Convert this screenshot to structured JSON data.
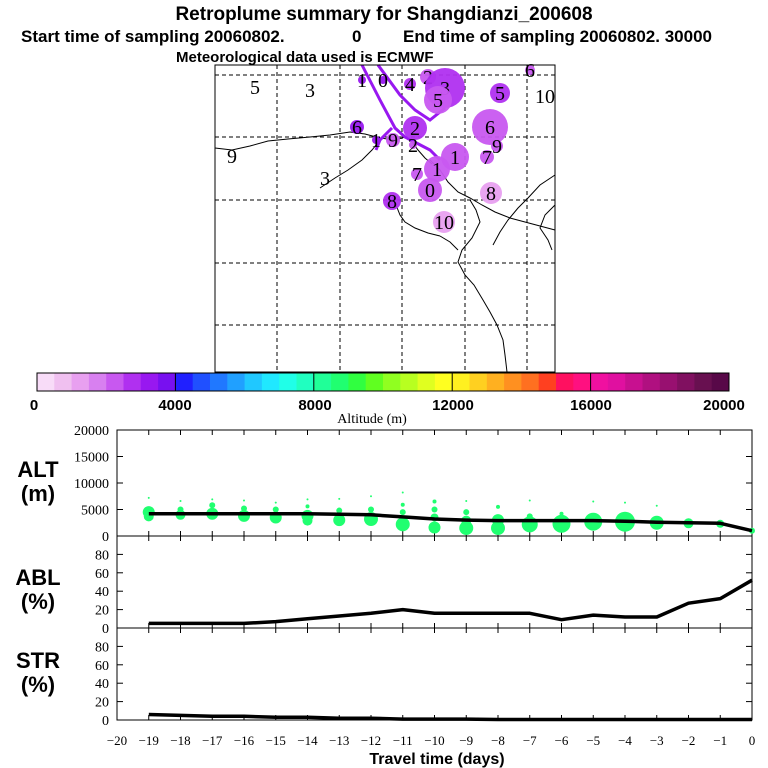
{
  "header": {
    "title": "Retroplume summary for Shangdianzi_200608",
    "start_label": "Start time of sampling 20060802.",
    "start_value": "0",
    "end_label": "End time of sampling 20060802. 30000",
    "met_label": "Meteorological data used is ECMWF"
  },
  "colorbar": {
    "min": 0,
    "max": 20000,
    "tick_labels": [
      "0",
      "4000",
      "8000",
      "12000",
      "16000",
      "20000"
    ],
    "ticks": [
      0,
      4000,
      8000,
      12000,
      16000,
      20000
    ],
    "xlabel": "Altitude (m)",
    "colors": [
      "#f8dcf8",
      "#f0c0f0",
      "#e8a0f0",
      "#d880f0",
      "#c858f0",
      "#b030f0",
      "#9818f0",
      "#7810f0",
      "#2020ff",
      "#2050ff",
      "#2078ff",
      "#20a0ff",
      "#20c8ff",
      "#20e8ff",
      "#20ffe8",
      "#20ffc0",
      "#20ff98",
      "#20ff70",
      "#30ff40",
      "#60ff20",
      "#90ff20",
      "#b8ff20",
      "#e0ff20",
      "#ffff20",
      "#fff020",
      "#ffd020",
      "#ffb020",
      "#ff9020",
      "#ff7020",
      "#ff4020",
      "#ff1060",
      "#ff1080",
      "#f010a0",
      "#e010a0",
      "#c81090",
      "#b01080",
      "#981070",
      "#801060",
      "#681050",
      "#580848"
    ]
  },
  "map": {
    "markers": [
      {
        "label": "5",
        "x": 255,
        "y": 87,
        "r": 0,
        "color": "#c858f0"
      },
      {
        "label": "3",
        "x": 310,
        "y": 90,
        "r": 0,
        "color": "#c858f0"
      },
      {
        "label": "1",
        "x": 362,
        "y": 80,
        "r": 4,
        "color": "#9818f0"
      },
      {
        "label": "0",
        "x": 383,
        "y": 80,
        "r": 4,
        "color": "#9818f0"
      },
      {
        "label": "4",
        "x": 410,
        "y": 84,
        "r": 6,
        "color": "#b030f0"
      },
      {
        "label": "2",
        "x": 428,
        "y": 77,
        "r": 8,
        "color": "#c858f0"
      },
      {
        "label": "3",
        "x": 445,
        "y": 88,
        "r": 20,
        "color": "#b030f0"
      },
      {
        "label": "5",
        "x": 438,
        "y": 100,
        "r": 14,
        "color": "#c858f0"
      },
      {
        "label": "5",
        "x": 500,
        "y": 93,
        "r": 10,
        "color": "#b030f0"
      },
      {
        "label": "6",
        "x": 530,
        "y": 70,
        "r": 5,
        "color": "#c858f0"
      },
      {
        "label": "10",
        "x": 545,
        "y": 96,
        "r": 0,
        "color": "#c858f0"
      },
      {
        "label": "6",
        "x": 357,
        "y": 127,
        "r": 7,
        "color": "#9818f0"
      },
      {
        "label": "6",
        "x": 490,
        "y": 127,
        "r": 18,
        "color": "#c858f0"
      },
      {
        "label": "9",
        "x": 232,
        "y": 156,
        "r": 0,
        "color": "#c858f0"
      },
      {
        "label": "1",
        "x": 376,
        "y": 140,
        "r": 4,
        "color": "#9818f0"
      },
      {
        "label": "9",
        "x": 393,
        "y": 140,
        "r": 7,
        "color": "#c858f0"
      },
      {
        "label": "2",
        "x": 415,
        "y": 128,
        "r": 12,
        "color": "#b030f0"
      },
      {
        "label": "2",
        "x": 413,
        "y": 145,
        "r": 4,
        "color": "#c858f0"
      },
      {
        "label": "1",
        "x": 455,
        "y": 157,
        "r": 14,
        "color": "#c858f0"
      },
      {
        "label": "7",
        "x": 487,
        "y": 157,
        "r": 7,
        "color": "#c858f0"
      },
      {
        "label": "9",
        "x": 497,
        "y": 146,
        "r": 6,
        "color": "#c858f0"
      },
      {
        "label": "3",
        "x": 325,
        "y": 178,
        "r": 0,
        "color": "#c858f0"
      },
      {
        "label": "7",
        "x": 417,
        "y": 174,
        "r": 6,
        "color": "#c858f0"
      },
      {
        "label": "1",
        "x": 437,
        "y": 169,
        "r": 13,
        "color": "#c858f0"
      },
      {
        "label": "0",
        "x": 430,
        "y": 190,
        "r": 12,
        "color": "#c858f0"
      },
      {
        "label": "8",
        "x": 491,
        "y": 193,
        "r": 11,
        "color": "#e8a0f0"
      },
      {
        "label": "8",
        "x": 392,
        "y": 201,
        "r": 9,
        "color": "#b030f0"
      },
      {
        "label": "10",
        "x": 444,
        "y": 222,
        "r": 11,
        "color": "#e8a0f0"
      }
    ]
  },
  "chart_data": [
    {
      "type": "line",
      "ylabel_line1": "ALT",
      "ylabel_line2": "(m)",
      "xlim": [
        -20,
        0
      ],
      "ylim": [
        0,
        20000
      ],
      "yticks": [
        0,
        5000,
        10000,
        15000,
        20000
      ],
      "ytick_labels": [
        "0",
        "5000",
        "10000",
        "15000",
        "20000"
      ],
      "x": [
        -19,
        -18,
        -17,
        -16,
        -15,
        -14,
        -13,
        -12,
        -11,
        -10,
        -9,
        -8,
        -7,
        -6,
        -5,
        -4,
        -3,
        -2,
        -1,
        0
      ],
      "y": [
        4200,
        4200,
        4200,
        4200,
        4200,
        4200,
        4100,
        4000,
        3600,
        3200,
        3000,
        2900,
        2900,
        2900,
        2900,
        2800,
        2600,
        2500,
        2400,
        1000
      ],
      "scatter": [
        {
          "x": -19,
          "y": 4500,
          "r": 6
        },
        {
          "x": -19,
          "y": 3700,
          "r": 5
        },
        {
          "x": -19,
          "y": 7200,
          "r": 1
        },
        {
          "x": -18,
          "y": 4000,
          "r": 5
        },
        {
          "x": -18,
          "y": 5000,
          "r": 3
        },
        {
          "x": -18,
          "y": 6600,
          "r": 1
        },
        {
          "x": -17,
          "y": 4200,
          "r": 6
        },
        {
          "x": -17,
          "y": 5800,
          "r": 3
        },
        {
          "x": -17,
          "y": 6900,
          "r": 1
        },
        {
          "x": -16,
          "y": 3800,
          "r": 6
        },
        {
          "x": -16,
          "y": 5200,
          "r": 3
        },
        {
          "x": -16,
          "y": 6700,
          "r": 1
        },
        {
          "x": -15,
          "y": 3500,
          "r": 6
        },
        {
          "x": -15,
          "y": 5000,
          "r": 3
        },
        {
          "x": -15,
          "y": 6300,
          "r": 1
        },
        {
          "x": -14,
          "y": 3800,
          "r": 6
        },
        {
          "x": -14,
          "y": 2900,
          "r": 5
        },
        {
          "x": -14,
          "y": 5600,
          "r": 2
        },
        {
          "x": -14,
          "y": 6900,
          "r": 1
        },
        {
          "x": -13,
          "y": 3000,
          "r": 6
        },
        {
          "x": -13,
          "y": 4800,
          "r": 3
        },
        {
          "x": -13,
          "y": 7000,
          "r": 1
        },
        {
          "x": -12,
          "y": 3200,
          "r": 7
        },
        {
          "x": -12,
          "y": 5000,
          "r": 3
        },
        {
          "x": -12,
          "y": 7500,
          "r": 1
        },
        {
          "x": -11,
          "y": 2200,
          "r": 7
        },
        {
          "x": -11,
          "y": 4500,
          "r": 3
        },
        {
          "x": -11,
          "y": 5900,
          "r": 2
        },
        {
          "x": -11,
          "y": 8200,
          "r": 1
        },
        {
          "x": -10,
          "y": 1600,
          "r": 6
        },
        {
          "x": -10,
          "y": 3500,
          "r": 4
        },
        {
          "x": -10,
          "y": 5000,
          "r": 3
        },
        {
          "x": -10,
          "y": 6500,
          "r": 2
        },
        {
          "x": -9,
          "y": 1500,
          "r": 7
        },
        {
          "x": -9,
          "y": 2900,
          "r": 5
        },
        {
          "x": -9,
          "y": 4500,
          "r": 3
        },
        {
          "x": -9,
          "y": 6600,
          "r": 1
        },
        {
          "x": -8,
          "y": 1500,
          "r": 7
        },
        {
          "x": -8,
          "y": 3000,
          "r": 6
        },
        {
          "x": -8,
          "y": 5500,
          "r": 2
        },
        {
          "x": -7,
          "y": 2200,
          "r": 8
        },
        {
          "x": -7,
          "y": 3700,
          "r": 3
        },
        {
          "x": -7,
          "y": 6700,
          "r": 1
        },
        {
          "x": -6,
          "y": 2300,
          "r": 9
        },
        {
          "x": -6,
          "y": 4200,
          "r": 2
        },
        {
          "x": -5,
          "y": 2700,
          "r": 9
        },
        {
          "x": -5,
          "y": 6500,
          "r": 1
        },
        {
          "x": -4,
          "y": 2700,
          "r": 10
        },
        {
          "x": -4,
          "y": 6300,
          "r": 1
        },
        {
          "x": -3,
          "y": 2500,
          "r": 7
        },
        {
          "x": -3,
          "y": 5700,
          "r": 1
        },
        {
          "x": -2,
          "y": 2400,
          "r": 5
        },
        {
          "x": -1,
          "y": 2300,
          "r": 4
        },
        {
          "x": 0,
          "y": 1000,
          "r": 3
        }
      ]
    },
    {
      "type": "line",
      "ylabel_line1": "ABL",
      "ylabel_line2": "(%)",
      "xlim": [
        -20,
        0
      ],
      "ylim": [
        0,
        100
      ],
      "yticks": [
        0,
        20,
        40,
        60,
        80
      ],
      "ytick_labels": [
        "0",
        "20",
        "40",
        "60",
        "80"
      ],
      "x": [
        -19,
        -18,
        -17,
        -16,
        -15,
        -14,
        -13,
        -12,
        -11,
        -10,
        -9,
        -8,
        -7,
        -6,
        -5,
        -4,
        -3,
        -2,
        -1,
        0
      ],
      "y": [
        5,
        5,
        5,
        5,
        7,
        10,
        13,
        16,
        20,
        16,
        16,
        16,
        16,
        9,
        14,
        12,
        12,
        27,
        32,
        52
      ]
    },
    {
      "type": "line",
      "ylabel_line1": "STR",
      "ylabel_line2": "(%)",
      "xlim": [
        -20,
        0
      ],
      "ylim": [
        0,
        100
      ],
      "yticks": [
        0,
        20,
        40,
        60,
        80
      ],
      "ytick_labels": [
        "0",
        "20",
        "40",
        "60",
        "80"
      ],
      "x": [
        -19,
        -18,
        -17,
        -16,
        -15,
        -14,
        -13,
        -12,
        -11,
        -10,
        -9,
        -8,
        -7,
        -6,
        -5,
        -4,
        -3,
        -2,
        -1,
        0
      ],
      "y": [
        6,
        5,
        4,
        4,
        3,
        3,
        2,
        2,
        1,
        1,
        1,
        0.5,
        0.5,
        0.5,
        0.5,
        0.5,
        0.5,
        0.5,
        0.5,
        0.5
      ],
      "xticks": [
        -20,
        -19,
        -18,
        -17,
        -16,
        -15,
        -14,
        -13,
        -12,
        -11,
        -10,
        -9,
        -8,
        -7,
        -6,
        -5,
        -4,
        -3,
        -2,
        -1,
        0
      ],
      "xtick_labels": [
        "−20",
        "−19",
        "−18",
        "−17",
        "−16",
        "−15",
        "−14",
        "−13",
        "−12",
        "−11",
        "−10",
        "−9",
        "−8",
        "−7",
        "−6",
        "−5",
        "−4",
        "−3",
        "−2",
        "−1",
        "0"
      ],
      "xlabel": "Travel time (days)"
    }
  ]
}
